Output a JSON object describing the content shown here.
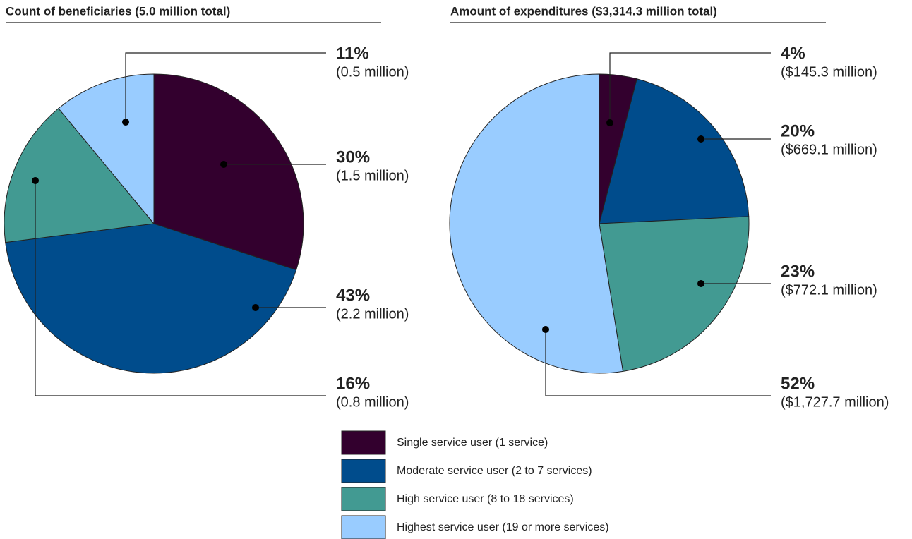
{
  "chart_data": [
    {
      "type": "pie",
      "title": "Count of beneficiaries (5.0 million total)",
      "values": [
        30,
        43,
        16,
        11
      ],
      "value_labels": [
        "30%",
        "43%",
        "16%",
        "11%"
      ],
      "detail_labels": [
        "(1.5 million)",
        "(2.2 million)",
        "(0.8 million)",
        "(0.5 million)"
      ]
    },
    {
      "type": "pie",
      "title": "Amount of expenditures ($3,314.3 million total)",
      "values": [
        4,
        20,
        23,
        52
      ],
      "value_labels": [
        "4%",
        "20%",
        "23%",
        "52%"
      ],
      "detail_labels": [
        "($145.3 million)",
        "($669.1 million)",
        "($772.1 million)",
        "($1,727.7 million)"
      ]
    }
  ],
  "legend": {
    "categories": [
      "Single service user (1 service)",
      "Moderate service user (2 to 7 services)",
      "High service user (8 to 18 services)",
      "Highest service user (19 or more services)"
    ],
    "colors": [
      "#33002e",
      "#004c8c",
      "#429a92",
      "#99ccff"
    ]
  }
}
